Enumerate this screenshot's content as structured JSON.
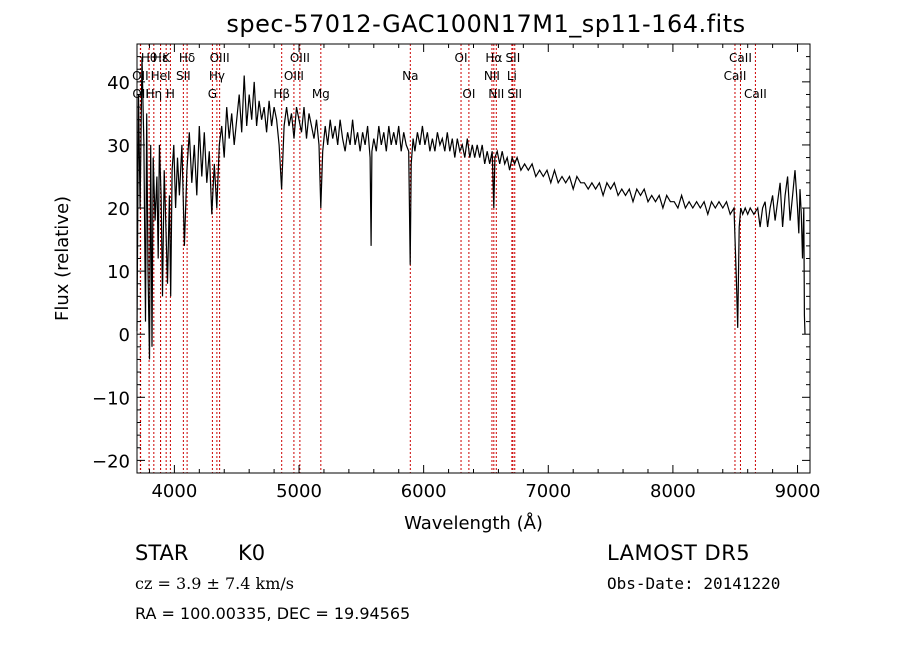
{
  "header": {
    "title": "spec-57012-GAC100N17M1_sp11-164.fits"
  },
  "info": {
    "object_class": "STAR",
    "subclass": "K0",
    "survey": "LAMOST DR5",
    "cz_text": "cz = 3.9 ± 7.4 km/s",
    "obs_date_text": "Obs-Date: 20141220",
    "radec_text": "RA = 100.00335, DEC =  19.94565"
  },
  "chart_data": {
    "type": "line",
    "xlabel": "Wavelength (Å)",
    "ylabel": "Flux (relative)",
    "xlim": [
      3700,
      9100
    ],
    "ylim": [
      -22,
      46
    ],
    "x_ticks": [
      4000,
      5000,
      6000,
      7000,
      8000,
      9000
    ],
    "y_ticks": [
      -20,
      -10,
      0,
      10,
      20,
      30,
      40
    ],
    "line_color": "#000000",
    "marker_color": "#cc0000",
    "spectrum": [
      [
        3700,
        0.5
      ],
      [
        3712,
        38
      ],
      [
        3725,
        20
      ],
      [
        3740,
        44
      ],
      [
        3755,
        30
      ],
      [
        3768,
        2
      ],
      [
        3778,
        35
      ],
      [
        3788,
        10
      ],
      [
        3800,
        -4
      ],
      [
        3810,
        30
      ],
      [
        3820,
        -2
      ],
      [
        3830,
        28
      ],
      [
        3845,
        18
      ],
      [
        3860,
        25
      ],
      [
        3870,
        12
      ],
      [
        3880,
        30
      ],
      [
        3893,
        22
      ],
      [
        3905,
        6
      ],
      [
        3918,
        26
      ],
      [
        3930,
        18
      ],
      [
        3945,
        8
      ],
      [
        3960,
        22
      ],
      [
        3970,
        6
      ],
      [
        3982,
        26
      ],
      [
        3995,
        30
      ],
      [
        4010,
        20
      ],
      [
        4025,
        28
      ],
      [
        4040,
        22
      ],
      [
        4060,
        30
      ],
      [
        4080,
        14
      ],
      [
        4100,
        26
      ],
      [
        4120,
        32
      ],
      [
        4140,
        24
      ],
      [
        4160,
        30
      ],
      [
        4180,
        22
      ],
      [
        4200,
        33
      ],
      [
        4220,
        25
      ],
      [
        4240,
        32
      ],
      [
        4260,
        24
      ],
      [
        4280,
        29
      ],
      [
        4300,
        19
      ],
      [
        4320,
        27
      ],
      [
        4340,
        20
      ],
      [
        4360,
        30
      ],
      [
        4380,
        33
      ],
      [
        4400,
        28
      ],
      [
        4420,
        36
      ],
      [
        4440,
        31
      ],
      [
        4460,
        35
      ],
      [
        4480,
        30
      ],
      [
        4500,
        34
      ],
      [
        4520,
        38
      ],
      [
        4540,
        32
      ],
      [
        4560,
        41
      ],
      [
        4580,
        33
      ],
      [
        4600,
        38
      ],
      [
        4620,
        34
      ],
      [
        4640,
        40
      ],
      [
        4660,
        33
      ],
      [
        4680,
        37
      ],
      [
        4700,
        34
      ],
      [
        4720,
        36
      ],
      [
        4740,
        32
      ],
      [
        4760,
        37
      ],
      [
        4780,
        33
      ],
      [
        4800,
        36
      ],
      [
        4820,
        34
      ],
      [
        4840,
        30
      ],
      [
        4860,
        23
      ],
      [
        4880,
        33
      ],
      [
        4900,
        36
      ],
      [
        4920,
        33
      ],
      [
        4940,
        35
      ],
      [
        4960,
        31
      ],
      [
        4980,
        36
      ],
      [
        5000,
        34
      ],
      [
        5020,
        32
      ],
      [
        5040,
        36
      ],
      [
        5060,
        31
      ],
      [
        5080,
        35
      ],
      [
        5100,
        33
      ],
      [
        5120,
        31
      ],
      [
        5140,
        34
      ],
      [
        5160,
        30
      ],
      [
        5175,
        20
      ],
      [
        5190,
        29
      ],
      [
        5210,
        33
      ],
      [
        5230,
        30
      ],
      [
        5250,
        34
      ],
      [
        5270,
        31
      ],
      [
        5290,
        33
      ],
      [
        5310,
        30
      ],
      [
        5330,
        34
      ],
      [
        5350,
        31
      ],
      [
        5370,
        29
      ],
      [
        5390,
        32
      ],
      [
        5410,
        30
      ],
      [
        5430,
        34
      ],
      [
        5450,
        30
      ],
      [
        5470,
        32
      ],
      [
        5490,
        29
      ],
      [
        5510,
        32
      ],
      [
        5530,
        30
      ],
      [
        5550,
        33
      ],
      [
        5570,
        28
      ],
      [
        5578,
        14
      ],
      [
        5585,
        29
      ],
      [
        5600,
        31
      ],
      [
        5620,
        29
      ],
      [
        5640,
        33
      ],
      [
        5660,
        30
      ],
      [
        5680,
        32
      ],
      [
        5700,
        29
      ],
      [
        5720,
        33
      ],
      [
        5740,
        30
      ],
      [
        5760,
        32
      ],
      [
        5780,
        30
      ],
      [
        5800,
        33
      ],
      [
        5820,
        29
      ],
      [
        5840,
        32
      ],
      [
        5860,
        30
      ],
      [
        5880,
        29
      ],
      [
        5892,
        11
      ],
      [
        5900,
        27
      ],
      [
        5915,
        31
      ],
      [
        5930,
        29
      ],
      [
        5950,
        32
      ],
      [
        5970,
        30
      ],
      [
        5990,
        33
      ],
      [
        6010,
        30
      ],
      [
        6030,
        32
      ],
      [
        6050,
        29
      ],
      [
        6070,
        31
      ],
      [
        6090,
        29
      ],
      [
        6110,
        32
      ],
      [
        6130,
        30
      ],
      [
        6150,
        31
      ],
      [
        6170,
        29
      ],
      [
        6190,
        32
      ],
      [
        6210,
        29
      ],
      [
        6230,
        31
      ],
      [
        6250,
        28
      ],
      [
        6270,
        31
      ],
      [
        6290,
        29
      ],
      [
        6310,
        30
      ],
      [
        6330,
        28
      ],
      [
        6350,
        31
      ],
      [
        6370,
        28
      ],
      [
        6390,
        30
      ],
      [
        6410,
        28
      ],
      [
        6430,
        30
      ],
      [
        6450,
        28
      ],
      [
        6470,
        30
      ],
      [
        6490,
        27
      ],
      [
        6510,
        29
      ],
      [
        6530,
        27
      ],
      [
        6550,
        29
      ],
      [
        6563,
        20
      ],
      [
        6572,
        28
      ],
      [
        6590,
        29
      ],
      [
        6610,
        27
      ],
      [
        6630,
        29
      ],
      [
        6650,
        27
      ],
      [
        6670,
        28
      ],
      [
        6690,
        26
      ],
      [
        6710,
        28
      ],
      [
        6730,
        27
      ],
      [
        6750,
        28
      ],
      [
        6780,
        26
      ],
      [
        6810,
        27
      ],
      [
        6840,
        26
      ],
      [
        6870,
        27
      ],
      [
        6900,
        25
      ],
      [
        6930,
        26
      ],
      [
        6960,
        25
      ],
      [
        6990,
        26
      ],
      [
        7020,
        24
      ],
      [
        7050,
        26
      ],
      [
        7080,
        24
      ],
      [
        7110,
        25
      ],
      [
        7140,
        24
      ],
      [
        7170,
        25
      ],
      [
        7200,
        23
      ],
      [
        7230,
        25
      ],
      [
        7260,
        24
      ],
      [
        7290,
        24
      ],
      [
        7320,
        23
      ],
      [
        7350,
        24
      ],
      [
        7380,
        23
      ],
      [
        7410,
        24
      ],
      [
        7440,
        22
      ],
      [
        7470,
        24
      ],
      [
        7500,
        23
      ],
      [
        7530,
        24
      ],
      [
        7560,
        22
      ],
      [
        7590,
        23
      ],
      [
        7620,
        22
      ],
      [
        7650,
        23
      ],
      [
        7680,
        21
      ],
      [
        7710,
        23
      ],
      [
        7740,
        22
      ],
      [
        7770,
        23
      ],
      [
        7800,
        21
      ],
      [
        7830,
        22
      ],
      [
        7860,
        21
      ],
      [
        7890,
        22
      ],
      [
        7920,
        20
      ],
      [
        7950,
        22
      ],
      [
        7980,
        21
      ],
      [
        8010,
        21
      ],
      [
        8040,
        20
      ],
      [
        8070,
        22
      ],
      [
        8100,
        20
      ],
      [
        8130,
        21
      ],
      [
        8160,
        20
      ],
      [
        8190,
        21
      ],
      [
        8220,
        20
      ],
      [
        8250,
        21
      ],
      [
        8280,
        19
      ],
      [
        8310,
        21
      ],
      [
        8340,
        20
      ],
      [
        8370,
        21
      ],
      [
        8400,
        20
      ],
      [
        8430,
        21
      ],
      [
        8460,
        19
      ],
      [
        8490,
        20
      ],
      [
        8510,
        8
      ],
      [
        8520,
        1
      ],
      [
        8532,
        17
      ],
      [
        8545,
        20
      ],
      [
        8560,
        19
      ],
      [
        8580,
        20
      ],
      [
        8600,
        19
      ],
      [
        8620,
        20
      ],
      [
        8650,
        19
      ],
      [
        8680,
        20
      ],
      [
        8700,
        17
      ],
      [
        8720,
        20
      ],
      [
        8740,
        21
      ],
      [
        8760,
        17
      ],
      [
        8780,
        20
      ],
      [
        8800,
        22
      ],
      [
        8820,
        18
      ],
      [
        8840,
        21
      ],
      [
        8860,
        24
      ],
      [
        8880,
        17
      ],
      [
        8900,
        22
      ],
      [
        8920,
        25
      ],
      [
        8940,
        18
      ],
      [
        8960,
        22
      ],
      [
        8980,
        26
      ],
      [
        9000,
        20
      ],
      [
        9010,
        16
      ],
      [
        9020,
        23
      ],
      [
        9030,
        19
      ],
      [
        9040,
        12
      ],
      [
        9050,
        20
      ],
      [
        9055,
        3
      ],
      [
        9060,
        0
      ]
    ],
    "lines": [
      {
        "label": "Hθ",
        "wave": 3797,
        "row": 1
      },
      {
        "label": "OII",
        "wave": 3727,
        "row": 2
      },
      {
        "label": "OII",
        "wave": 3729,
        "row": 3
      },
      {
        "label": "Hη",
        "wave": 3835,
        "row": 3
      },
      {
        "label": "Hε",
        "wave": 3889,
        "row": 1
      },
      {
        "label": "HeI",
        "wave": 3889,
        "row": 2
      },
      {
        "label": "K",
        "wave": 3934,
        "row": 1
      },
      {
        "label": "H",
        "wave": 3968,
        "row": 3
      },
      {
        "label": "Hδ",
        "wave": 4102,
        "row": 1
      },
      {
        "label": "SII",
        "wave": 4072,
        "row": 2
      },
      {
        "label": "OIII",
        "wave": 4363,
        "row": 1
      },
      {
        "label": "Hγ",
        "wave": 4341,
        "row": 2
      },
      {
        "label": "G",
        "wave": 4305,
        "row": 3
      },
      {
        "label": "OIII",
        "wave": 5007,
        "row": 1
      },
      {
        "label": "OIII",
        "wave": 4959,
        "row": 2
      },
      {
        "label": "Hβ",
        "wave": 4861,
        "row": 3
      },
      {
        "label": "Mg",
        "wave": 5175,
        "row": 3
      },
      {
        "label": "Na",
        "wave": 5893,
        "row": 2
      },
      {
        "label": "OI",
        "wave": 6300,
        "row": 1
      },
      {
        "label": "OI",
        "wave": 6363,
        "row": 3
      },
      {
        "label": "Hα",
        "wave": 6563,
        "row": 1
      },
      {
        "label": "NII",
        "wave": 6548,
        "row": 2
      },
      {
        "label": "NII",
        "wave": 6583,
        "row": 3
      },
      {
        "label": "SII",
        "wave": 6716,
        "row": 1
      },
      {
        "label": "Li",
        "wave": 6708,
        "row": 2
      },
      {
        "label": "SII",
        "wave": 6731,
        "row": 3
      },
      {
        "label": "CaII",
        "wave": 8542,
        "row": 1
      },
      {
        "label": "CaII",
        "wave": 8498,
        "row": 2
      },
      {
        "label": "CaII",
        "wave": 8662,
        "row": 3
      }
    ]
  }
}
